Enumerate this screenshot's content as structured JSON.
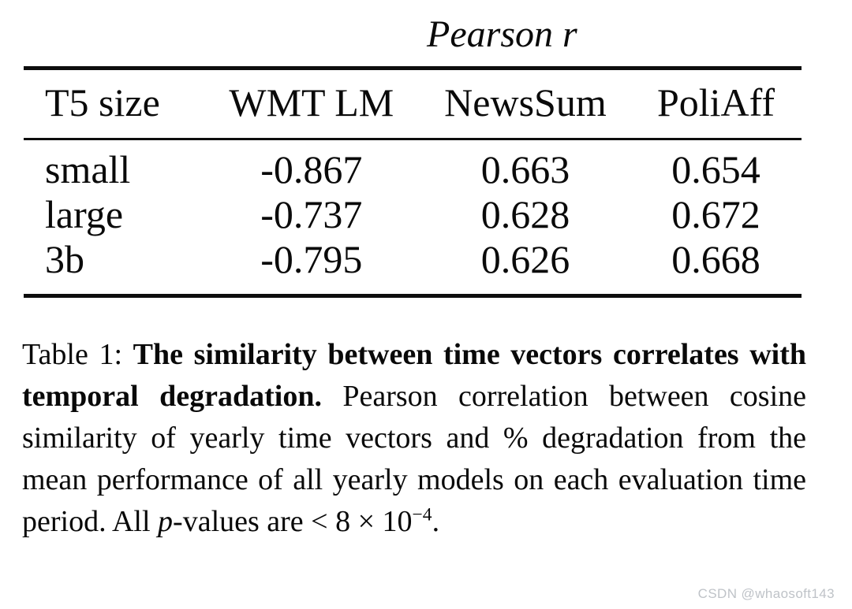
{
  "table": {
    "spanner": "Pearson r",
    "columns": [
      "T5 size",
      "WMT LM",
      "NewsSum",
      "PoliAff"
    ],
    "rows": [
      {
        "label": "small",
        "values": [
          "-0.867",
          "0.663",
          "0.654"
        ]
      },
      {
        "label": "large",
        "values": [
          "-0.737",
          "0.628",
          "0.672"
        ]
      },
      {
        "label": "3b",
        "values": [
          "-0.795",
          "0.626",
          "0.668"
        ]
      }
    ],
    "rule_color": "#0d0d0d",
    "text_color": "#0a0a0a"
  },
  "caption": {
    "label": "Table 1: ",
    "bold_title": "The similarity between time vectors correlates with temporal degradation.",
    "body_1": " Pearson correlation between cosine similarity of yearly time vectors and % degradation from the mean performance of all yearly models on each evaluation time period. All ",
    "p_symbol": "p",
    "body_2": "-values are < 8 × 10",
    "exponent": "−4",
    "body_end": "."
  },
  "watermark": {
    "text": "CSDN @whaosoft143",
    "color": "#bfc3c8"
  }
}
